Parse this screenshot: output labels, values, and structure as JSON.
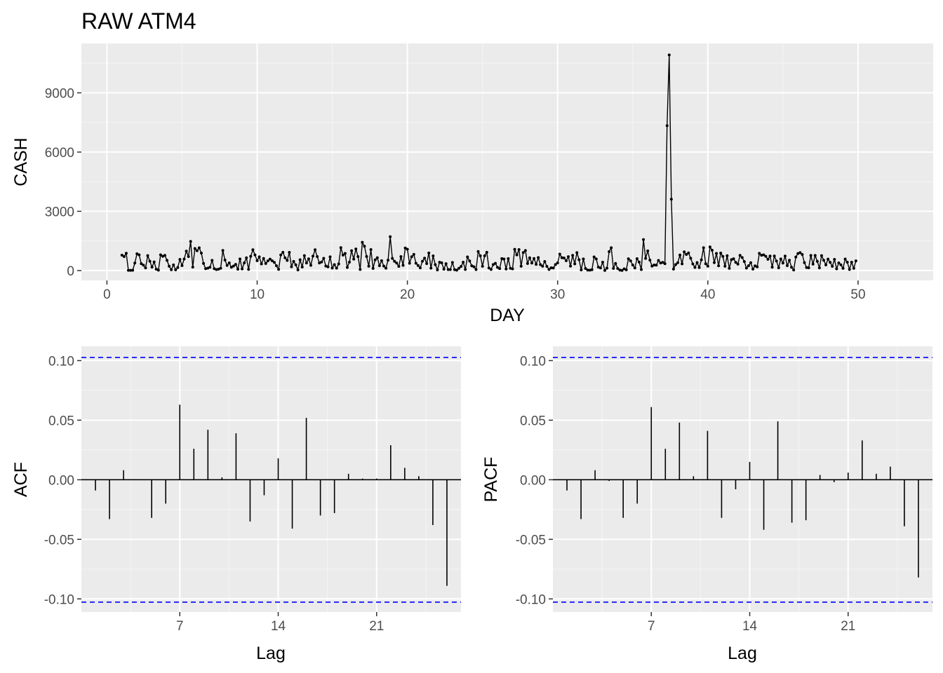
{
  "colors": {
    "panel_bg": "#EBEBEB",
    "grid_major": "#FFFFFF",
    "grid_minor": "#F5F5F5",
    "line": "#000000",
    "ci_line": "#0000FF",
    "tick_text": "#4D4D4D"
  },
  "chart_data": [
    {
      "type": "line",
      "title": "RAW ATM4",
      "xlabel": "DAY",
      "ylabel": "CASH",
      "xlim": [
        -1.7,
        55.0
      ],
      "ylim": [
        -500,
        11500
      ],
      "xticks": [
        0,
        10,
        20,
        30,
        40,
        50
      ],
      "xtick_labels": [
        "0",
        "10",
        "20",
        "30",
        "40",
        "50"
      ],
      "yticks": [
        0,
        3000,
        6000,
        9000
      ],
      "ytick_labels": [
        "0",
        "3000",
        "6000",
        "9000"
      ],
      "grid": true,
      "markers": "points",
      "series": [
        {
          "x_start": 1,
          "x_step": 0.1428571,
          "values": [
            776,
            709,
            874,
            12,
            11,
            14,
            379,
            847,
            797,
            349,
            273,
            134,
            756,
            472,
            174,
            436,
            66,
            20,
            796,
            720,
            770,
            516,
            219,
            40,
            287,
            35,
            153,
            565,
            251,
            584,
            984,
            709,
            1476,
            174,
            1117,
            1006,
            1152,
            883,
            359,
            96,
            119,
            164,
            517,
            95,
            51,
            66,
            116,
            1017,
            532,
            260,
            387,
            164,
            229,
            313,
            67,
            588,
            81,
            389,
            643,
            61,
            719,
            1051,
            793,
            498,
            693,
            334,
            610,
            356,
            490,
            578,
            492,
            413,
            241,
            59,
            793,
            923,
            646,
            512,
            920,
            191,
            464,
            292,
            31,
            546,
            177,
            754,
            382,
            590,
            262,
            729,
            1051,
            706,
            382,
            434,
            617,
            226,
            189,
            693,
            127,
            299,
            119,
            334,
            1161,
            784,
            865,
            155,
            426,
            1006,
            580,
            1094,
            706,
            56,
            1432,
            1231,
            711,
            218,
            1063,
            106,
            542,
            651,
            246,
            500,
            228,
            117,
            526,
            1716,
            615,
            469,
            377,
            208,
            705,
            263,
            1144,
            1079,
            368,
            696,
            818,
            372,
            253,
            134,
            474,
            625,
            350,
            891,
            120,
            741,
            301,
            34,
            419,
            394,
            68,
            347,
            52,
            48,
            409,
            45,
            19,
            111,
            204,
            424,
            56,
            690,
            483,
            243,
            193,
            51,
            966,
            749,
            214,
            749,
            924,
            130,
            55,
            303,
            367,
            163,
            97,
            606,
            581,
            75,
            603,
            113,
            86,
            1076,
            792,
            1060,
            218,
            912,
            1015,
            357,
            643,
            380,
            610,
            314,
            657,
            299,
            218,
            460,
            211,
            56,
            137,
            130,
            304,
            388,
            831,
            649,
            634,
            499,
            702,
            222,
            771,
            338,
            906,
            547,
            31,
            587,
            104,
            24,
            18,
            42,
            689,
            588,
            174,
            128,
            425,
            8,
            121,
            957,
            1155,
            107,
            361,
            102,
            25,
            4,
            86,
            35,
            595,
            488,
            281,
            129,
            600,
            427,
            50,
            1569,
            616,
            996,
            529,
            225,
            282,
            272,
            510,
            385,
            413,
            349,
            7339,
            10920,
            3614,
            72,
            305,
            395,
            788,
            337,
            945,
            812,
            895,
            621,
            336,
            158,
            404,
            151,
            544,
            1155,
            343,
            220,
            1196,
            1028,
            403,
            867,
            240,
            885,
            717,
            219,
            752,
            114,
            553,
            597,
            412,
            327,
            768,
            659,
            455,
            124,
            245,
            396,
            71,
            235,
            187,
            873,
            773,
            794,
            721,
            568,
            734,
            171,
            737,
            482,
            141,
            589,
            380,
            733,
            251,
            519,
            166,
            26,
            687,
            864,
            907,
            815,
            400,
            152,
            138,
            765,
            327,
            764,
            466,
            136,
            754,
            523,
            287,
            579,
            412,
            213,
            563,
            86,
            386,
            289,
            111,
            581,
            421,
            53,
            424,
            112,
            488
          ]
        }
      ]
    },
    {
      "type": "bar",
      "xlabel": "Lag",
      "ylabel": "ACF",
      "xlim": [
        0.0,
        27.0
      ],
      "ylim": [
        -0.111,
        0.112
      ],
      "xticks": [
        7,
        14,
        21
      ],
      "xtick_labels": [
        "7",
        "14",
        "21"
      ],
      "yticks": [
        -0.1,
        -0.05,
        0.0,
        0.05,
        0.1
      ],
      "ytick_labels": [
        "-0.10",
        "-0.05",
        "0.00",
        "0.05",
        "0.10"
      ],
      "ci": [
        0.1027,
        -0.1027
      ],
      "grid": true,
      "lags": [
        1,
        2,
        3,
        4,
        5,
        6,
        7,
        8,
        9,
        10,
        11,
        12,
        13,
        14,
        15,
        16,
        17,
        18,
        19,
        20,
        21,
        22,
        23,
        24,
        25,
        26
      ],
      "values": [
        -0.009,
        -0.033,
        0.008,
        0.0,
        -0.032,
        -0.02,
        0.063,
        0.026,
        0.042,
        0.002,
        0.039,
        -0.035,
        -0.013,
        0.018,
        -0.041,
        0.052,
        -0.03,
        -0.028,
        0.005,
        0.001,
        0.001,
        0.029,
        0.01,
        0.003,
        -0.038,
        -0.089
      ]
    },
    {
      "type": "bar",
      "xlabel": "Lag",
      "ylabel": "PACF",
      "xlim": [
        0.0,
        27.0
      ],
      "ylim": [
        -0.111,
        0.112
      ],
      "xticks": [
        7,
        14,
        21
      ],
      "xtick_labels": [
        "7",
        "14",
        "21"
      ],
      "yticks": [
        -0.1,
        -0.05,
        0.0,
        0.05,
        0.1
      ],
      "ytick_labels": [
        "-0.10",
        "-0.05",
        "0.00",
        "0.05",
        "0.10"
      ],
      "ci": [
        0.1027,
        -0.1027
      ],
      "grid": true,
      "lags": [
        1,
        2,
        3,
        4,
        5,
        6,
        7,
        8,
        9,
        10,
        11,
        12,
        13,
        14,
        15,
        16,
        17,
        18,
        19,
        20,
        21,
        22,
        23,
        24,
        25,
        26
      ],
      "values": [
        -0.009,
        -0.033,
        0.008,
        -0.001,
        -0.032,
        -0.02,
        0.061,
        0.026,
        0.048,
        0.003,
        0.041,
        -0.032,
        -0.008,
        0.015,
        -0.042,
        0.049,
        -0.036,
        -0.034,
        0.004,
        -0.002,
        0.006,
        0.033,
        0.005,
        0.011,
        -0.039,
        -0.082
      ]
    }
  ]
}
